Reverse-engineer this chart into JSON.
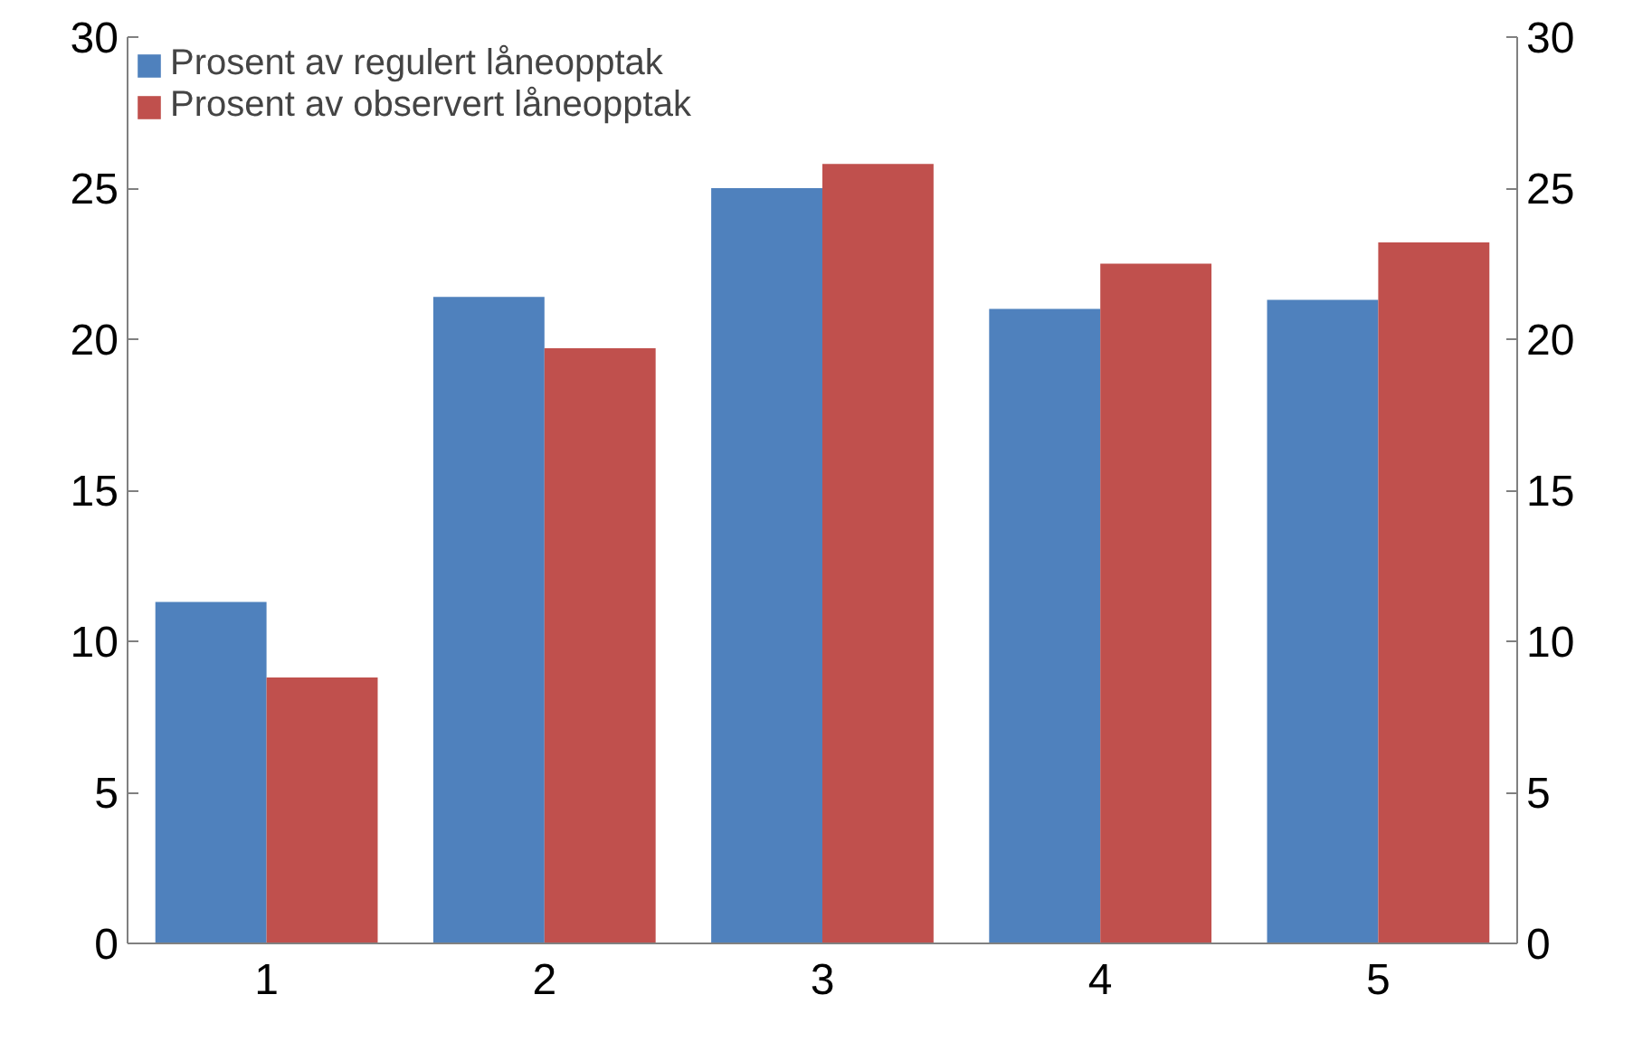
{
  "chart_data": {
    "type": "bar",
    "categories": [
      "1",
      "2",
      "3",
      "4",
      "5"
    ],
    "series": [
      {
        "name": "Prosent av regulert låneopptak",
        "color": "#4f81bd",
        "values": [
          11.3,
          21.4,
          25.0,
          21.0,
          21.3
        ]
      },
      {
        "name": "Prosent av observert låneopptak",
        "color": "#c0504d",
        "values": [
          8.8,
          19.7,
          25.8,
          22.5,
          23.2
        ]
      }
    ],
    "ylim": [
      0,
      30
    ],
    "yticks": [
      0,
      5,
      10,
      15,
      20,
      25,
      30
    ],
    "y2lim": [
      0,
      30
    ],
    "y2ticks": [
      0,
      5,
      10,
      15,
      20,
      25,
      30
    ],
    "legend": "top left",
    "grid": false
  }
}
